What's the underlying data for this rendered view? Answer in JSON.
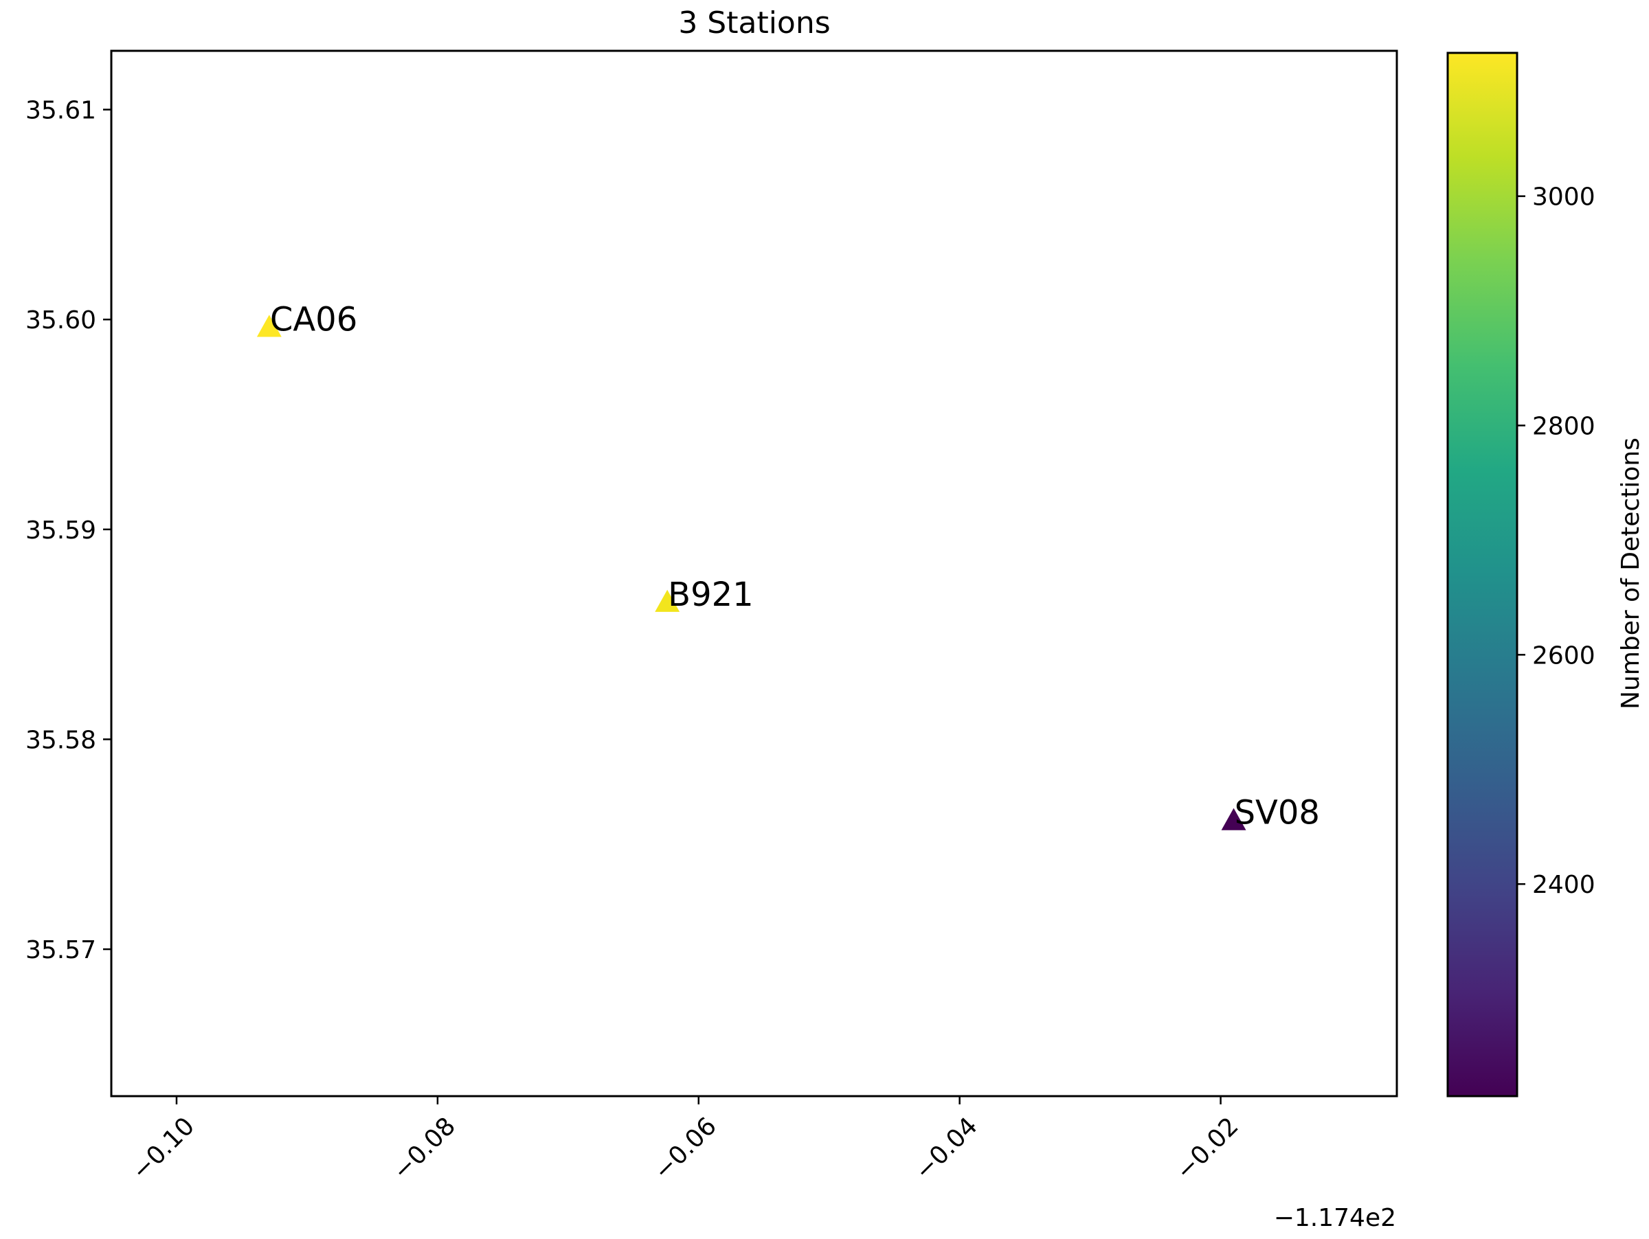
{
  "chart_data": {
    "type": "scatter",
    "title": "3 Stations",
    "xlabel": "",
    "ylabel": "",
    "x_offset_label": "−1.174e2",
    "xlim": [
      -0.105,
      -0.0065
    ],
    "ylim": [
      35.563,
      35.6128
    ],
    "x_ticks": [
      -0.1,
      -0.08,
      -0.06,
      -0.04,
      -0.02
    ],
    "x_tick_labels": [
      "−0.10",
      "−0.08",
      "−0.06",
      "−0.04",
      "−0.02"
    ],
    "y_ticks": [
      35.57,
      35.58,
      35.59,
      35.6,
      35.61
    ],
    "y_tick_labels": [
      "35.57",
      "35.58",
      "35.59",
      "35.60",
      "35.61"
    ],
    "marker": "triangle",
    "grid": false,
    "points": [
      {
        "label": "CA06",
        "x": -0.0929,
        "y": 35.5996,
        "detections": 3120,
        "color": "#fde725"
      },
      {
        "label": "B921",
        "x": -0.0624,
        "y": 35.5865,
        "detections": 3115,
        "color": "#f2e51d"
      },
      {
        "label": "SV08",
        "x": -0.019,
        "y": 35.5761,
        "detections": 2220,
        "color": "#440154"
      }
    ],
    "colorbar": {
      "label": "Number of Detections",
      "colormap": "viridis",
      "range": [
        2215,
        3125
      ],
      "ticks": [
        2400,
        2600,
        2800,
        3000
      ],
      "tick_labels": [
        "2400",
        "2600",
        "2800",
        "3000"
      ]
    }
  }
}
